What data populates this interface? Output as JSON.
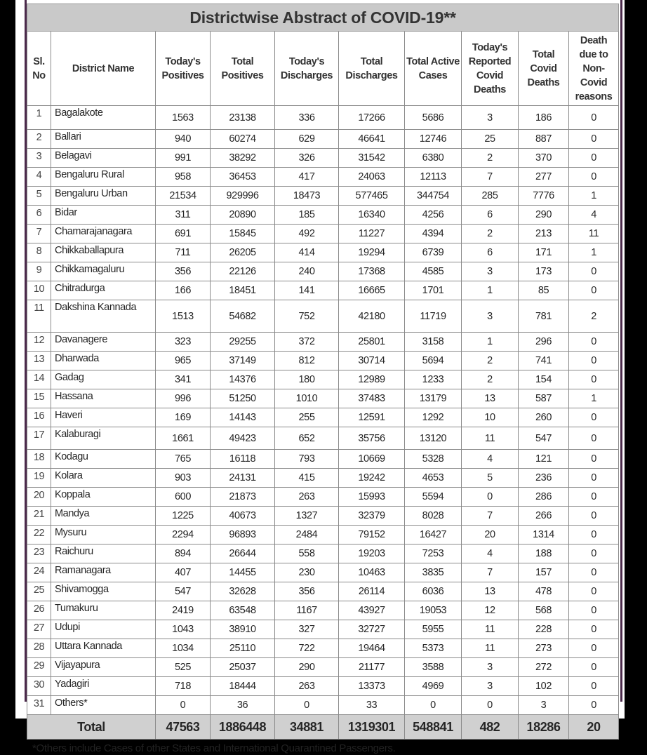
{
  "title": "Districtwise Abstract of COVID-19**",
  "columns": [
    "Sl. No",
    "District Name",
    "Today's Positives",
    "Total Positives",
    "Today's Discharges",
    "Total Discharges",
    "Total Active Cases",
    "Today's Reported Covid Deaths",
    "Total Covid Deaths",
    "Death due to Non-Covid reasons"
  ],
  "rows": [
    [
      "1",
      "Bagalakote",
      "1563",
      "23138",
      "336",
      "17266",
      "5686",
      "3",
      "186",
      "0"
    ],
    [
      "2",
      "Ballari",
      "940",
      "60274",
      "629",
      "46641",
      "12746",
      "25",
      "887",
      "0"
    ],
    [
      "3",
      "Belagavi",
      "991",
      "38292",
      "326",
      "31542",
      "6380",
      "2",
      "370",
      "0"
    ],
    [
      "4",
      "Bengaluru Rural",
      "958",
      "36453",
      "417",
      "24063",
      "12113",
      "7",
      "277",
      "0"
    ],
    [
      "5",
      "Bengaluru Urban",
      "21534",
      "929996",
      "18473",
      "577465",
      "344754",
      "285",
      "7776",
      "1"
    ],
    [
      "6",
      "Bidar",
      "311",
      "20890",
      "185",
      "16340",
      "4256",
      "6",
      "290",
      "4"
    ],
    [
      "7",
      "Chamarajanagara",
      "691",
      "15845",
      "492",
      "11227",
      "4394",
      "2",
      "213",
      "11"
    ],
    [
      "8",
      "Chikkaballapura",
      "711",
      "26205",
      "414",
      "19294",
      "6739",
      "6",
      "171",
      "1"
    ],
    [
      "9",
      "Chikkamagaluru",
      "356",
      "22126",
      "240",
      "17368",
      "4585",
      "3",
      "173",
      "0"
    ],
    [
      "10",
      "Chitradurga",
      "166",
      "18451",
      "141",
      "16665",
      "1701",
      "1",
      "85",
      "0"
    ],
    [
      "11",
      "Dakshina Kannada",
      "1513",
      "54682",
      "752",
      "42180",
      "11719",
      "3",
      "781",
      "2"
    ],
    [
      "12",
      "Davanagere",
      "323",
      "29255",
      "372",
      "25801",
      "3158",
      "1",
      "296",
      "0"
    ],
    [
      "13",
      "Dharwada",
      "965",
      "37149",
      "812",
      "30714",
      "5694",
      "2",
      "741",
      "0"
    ],
    [
      "14",
      "Gadag",
      "341",
      "14376",
      "180",
      "12989",
      "1233",
      "2",
      "154",
      "0"
    ],
    [
      "15",
      "Hassana",
      "996",
      "51250",
      "1010",
      "37483",
      "13179",
      "13",
      "587",
      "1"
    ],
    [
      "16",
      "Haveri",
      "169",
      "14143",
      "255",
      "12591",
      "1292",
      "10",
      "260",
      "0"
    ],
    [
      "17",
      "Kalaburagi",
      "1661",
      "49423",
      "652",
      "35756",
      "13120",
      "11",
      "547",
      "0"
    ],
    [
      "18",
      "Kodagu",
      "765",
      "16118",
      "793",
      "10669",
      "5328",
      "4",
      "121",
      "0"
    ],
    [
      "19",
      "Kolara",
      "903",
      "24131",
      "415",
      "19242",
      "4653",
      "5",
      "236",
      "0"
    ],
    [
      "20",
      "Koppala",
      "600",
      "21873",
      "263",
      "15993",
      "5594",
      "0",
      "286",
      "0"
    ],
    [
      "21",
      "Mandya",
      "1225",
      "40673",
      "1327",
      "32379",
      "8028",
      "7",
      "266",
      "0"
    ],
    [
      "22",
      "Mysuru",
      "2294",
      "96893",
      "2484",
      "79152",
      "16427",
      "20",
      "1314",
      "0"
    ],
    [
      "23",
      "Raichuru",
      "894",
      "26644",
      "558",
      "19203",
      "7253",
      "4",
      "188",
      "0"
    ],
    [
      "24",
      "Ramanagara",
      "407",
      "14455",
      "230",
      "10463",
      "3835",
      "7",
      "157",
      "0"
    ],
    [
      "25",
      "Shivamogga",
      "547",
      "32628",
      "356",
      "26114",
      "6036",
      "13",
      "478",
      "0"
    ],
    [
      "26",
      "Tumakuru",
      "2419",
      "63548",
      "1167",
      "43927",
      "19053",
      "12",
      "568",
      "0"
    ],
    [
      "27",
      "Udupi",
      "1043",
      "38910",
      "327",
      "32727",
      "5955",
      "11",
      "228",
      "0"
    ],
    [
      "28",
      "Uttara Kannada",
      "1034",
      "25110",
      "722",
      "19464",
      "5373",
      "11",
      "273",
      "0"
    ],
    [
      "29",
      "Vijayapura",
      "525",
      "25037",
      "290",
      "21177",
      "3588",
      "3",
      "272",
      "0"
    ],
    [
      "30",
      "Yadagiri",
      "718",
      "18444",
      "263",
      "13373",
      "4969",
      "3",
      "102",
      "0"
    ],
    [
      "31",
      "Others*",
      "0",
      "36",
      "0",
      "33",
      "0",
      "0",
      "3",
      "0"
    ]
  ],
  "total": {
    "label": "Total",
    "values": [
      "47563",
      "1886448",
      "34881",
      "1319301",
      "548841",
      "482",
      "18286",
      "20"
    ]
  },
  "footnote": "*Others include Cases of other States and International Quarantined Passengers."
}
